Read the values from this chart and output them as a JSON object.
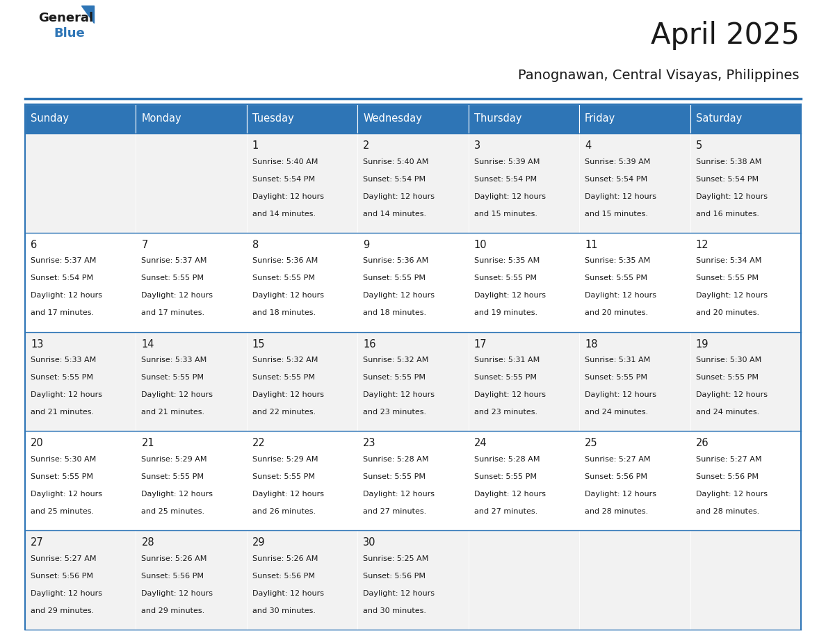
{
  "title": "April 2025",
  "subtitle": "Panognawan, Central Visayas, Philippines",
  "header_bg_color": "#2E75B6",
  "header_text_color": "#FFFFFF",
  "row_bg_colors": [
    "#F2F2F2",
    "#FFFFFF",
    "#F2F2F2",
    "#FFFFFF",
    "#F2F2F2"
  ],
  "border_color": "#2E75B6",
  "text_color": "#1a1a1a",
  "days_of_week": [
    "Sunday",
    "Monday",
    "Tuesday",
    "Wednesday",
    "Thursday",
    "Friday",
    "Saturday"
  ],
  "calendar_data": [
    [
      {
        "day": "",
        "sunrise": "",
        "sunset": "",
        "daylight_hours": 0,
        "daylight_minutes": 0
      },
      {
        "day": "",
        "sunrise": "",
        "sunset": "",
        "daylight_hours": 0,
        "daylight_minutes": 0
      },
      {
        "day": "1",
        "sunrise": "5:40 AM",
        "sunset": "5:54 PM",
        "daylight_hours": 12,
        "daylight_minutes": 14
      },
      {
        "day": "2",
        "sunrise": "5:40 AM",
        "sunset": "5:54 PM",
        "daylight_hours": 12,
        "daylight_minutes": 14
      },
      {
        "day": "3",
        "sunrise": "5:39 AM",
        "sunset": "5:54 PM",
        "daylight_hours": 12,
        "daylight_minutes": 15
      },
      {
        "day": "4",
        "sunrise": "5:39 AM",
        "sunset": "5:54 PM",
        "daylight_hours": 12,
        "daylight_minutes": 15
      },
      {
        "day": "5",
        "sunrise": "5:38 AM",
        "sunset": "5:54 PM",
        "daylight_hours": 12,
        "daylight_minutes": 16
      }
    ],
    [
      {
        "day": "6",
        "sunrise": "5:37 AM",
        "sunset": "5:54 PM",
        "daylight_hours": 12,
        "daylight_minutes": 17
      },
      {
        "day": "7",
        "sunrise": "5:37 AM",
        "sunset": "5:55 PM",
        "daylight_hours": 12,
        "daylight_minutes": 17
      },
      {
        "day": "8",
        "sunrise": "5:36 AM",
        "sunset": "5:55 PM",
        "daylight_hours": 12,
        "daylight_minutes": 18
      },
      {
        "day": "9",
        "sunrise": "5:36 AM",
        "sunset": "5:55 PM",
        "daylight_hours": 12,
        "daylight_minutes": 18
      },
      {
        "day": "10",
        "sunrise": "5:35 AM",
        "sunset": "5:55 PM",
        "daylight_hours": 12,
        "daylight_minutes": 19
      },
      {
        "day": "11",
        "sunrise": "5:35 AM",
        "sunset": "5:55 PM",
        "daylight_hours": 12,
        "daylight_minutes": 20
      },
      {
        "day": "12",
        "sunrise": "5:34 AM",
        "sunset": "5:55 PM",
        "daylight_hours": 12,
        "daylight_minutes": 20
      }
    ],
    [
      {
        "day": "13",
        "sunrise": "5:33 AM",
        "sunset": "5:55 PM",
        "daylight_hours": 12,
        "daylight_minutes": 21
      },
      {
        "day": "14",
        "sunrise": "5:33 AM",
        "sunset": "5:55 PM",
        "daylight_hours": 12,
        "daylight_minutes": 21
      },
      {
        "day": "15",
        "sunrise": "5:32 AM",
        "sunset": "5:55 PM",
        "daylight_hours": 12,
        "daylight_minutes": 22
      },
      {
        "day": "16",
        "sunrise": "5:32 AM",
        "sunset": "5:55 PM",
        "daylight_hours": 12,
        "daylight_minutes": 23
      },
      {
        "day": "17",
        "sunrise": "5:31 AM",
        "sunset": "5:55 PM",
        "daylight_hours": 12,
        "daylight_minutes": 23
      },
      {
        "day": "18",
        "sunrise": "5:31 AM",
        "sunset": "5:55 PM",
        "daylight_hours": 12,
        "daylight_minutes": 24
      },
      {
        "day": "19",
        "sunrise": "5:30 AM",
        "sunset": "5:55 PM",
        "daylight_hours": 12,
        "daylight_minutes": 24
      }
    ],
    [
      {
        "day": "20",
        "sunrise": "5:30 AM",
        "sunset": "5:55 PM",
        "daylight_hours": 12,
        "daylight_minutes": 25
      },
      {
        "day": "21",
        "sunrise": "5:29 AM",
        "sunset": "5:55 PM",
        "daylight_hours": 12,
        "daylight_minutes": 25
      },
      {
        "day": "22",
        "sunrise": "5:29 AM",
        "sunset": "5:55 PM",
        "daylight_hours": 12,
        "daylight_minutes": 26
      },
      {
        "day": "23",
        "sunrise": "5:28 AM",
        "sunset": "5:55 PM",
        "daylight_hours": 12,
        "daylight_minutes": 27
      },
      {
        "day": "24",
        "sunrise": "5:28 AM",
        "sunset": "5:55 PM",
        "daylight_hours": 12,
        "daylight_minutes": 27
      },
      {
        "day": "25",
        "sunrise": "5:27 AM",
        "sunset": "5:56 PM",
        "daylight_hours": 12,
        "daylight_minutes": 28
      },
      {
        "day": "26",
        "sunrise": "5:27 AM",
        "sunset": "5:56 PM",
        "daylight_hours": 12,
        "daylight_minutes": 28
      }
    ],
    [
      {
        "day": "27",
        "sunrise": "5:27 AM",
        "sunset": "5:56 PM",
        "daylight_hours": 12,
        "daylight_minutes": 29
      },
      {
        "day": "28",
        "sunrise": "5:26 AM",
        "sunset": "5:56 PM",
        "daylight_hours": 12,
        "daylight_minutes": 29
      },
      {
        "day": "29",
        "sunrise": "5:26 AM",
        "sunset": "5:56 PM",
        "daylight_hours": 12,
        "daylight_minutes": 30
      },
      {
        "day": "30",
        "sunrise": "5:25 AM",
        "sunset": "5:56 PM",
        "daylight_hours": 12,
        "daylight_minutes": 30
      },
      {
        "day": "",
        "sunrise": "",
        "sunset": "",
        "daylight_hours": 0,
        "daylight_minutes": 0
      },
      {
        "day": "",
        "sunrise": "",
        "sunset": "",
        "daylight_hours": 0,
        "daylight_minutes": 0
      },
      {
        "day": "",
        "sunrise": "",
        "sunset": "",
        "daylight_hours": 0,
        "daylight_minutes": 0
      }
    ]
  ],
  "fig_width": 11.88,
  "fig_height": 9.18,
  "dpi": 100
}
